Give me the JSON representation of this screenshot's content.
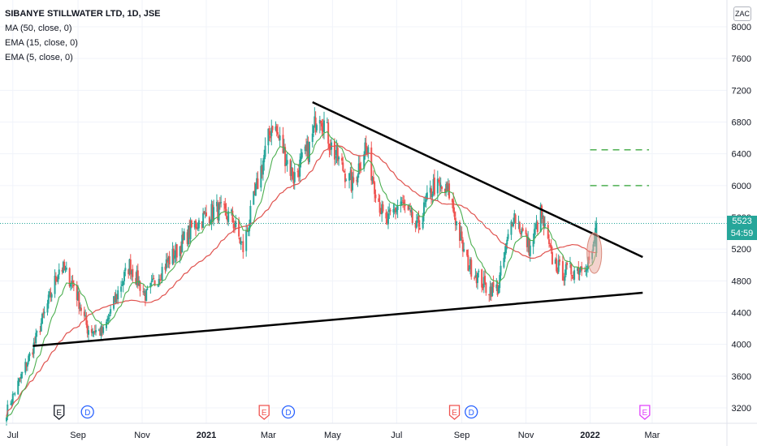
{
  "legend": {
    "title": "SIBANYE STILLWATER LTD, 1D, JSE",
    "ma": "MA (50, close, 0)",
    "ema15": "EMA (15, close, 0)",
    "ema5": "EMA (5, close, 0)"
  },
  "currency": "ZAC",
  "price_label": {
    "price": "5523",
    "timer": "54:59"
  },
  "colors": {
    "up": "#26a69a",
    "down": "#ef5350",
    "ma": "#e0534f",
    "ema15": "#4caf50",
    "trendline": "#000000",
    "target": "#4caf50",
    "ellipse": "#e7a89b",
    "price_box": "#26a69a"
  },
  "chart_data": {
    "type": "candlestick",
    "title": "SIBANYE STILLWATER LTD, 1D, JSE",
    "ylim": [
      3100,
      8100
    ],
    "y_ticks": [
      3200,
      3600,
      4000,
      4400,
      4800,
      5200,
      5600,
      6000,
      6400,
      6800,
      7200,
      7600,
      8000
    ],
    "x_labels": [
      "Jul",
      "Sep",
      "Nov",
      "2021",
      "Mar",
      "May",
      "Jul",
      "Sep",
      "Nov",
      "2022",
      "Mar"
    ],
    "last_price": 5523,
    "price_path": [
      [
        "2020-06-25",
        3150
      ],
      [
        "2020-07-20",
        3950
      ],
      [
        "2020-08-03",
        4500
      ],
      [
        "2020-08-15",
        5000
      ],
      [
        "2020-08-28",
        4750
      ],
      [
        "2020-09-10",
        4200
      ],
      [
        "2020-09-25",
        4150
      ],
      [
        "2020-10-10",
        4700
      ],
      [
        "2020-10-20",
        5000
      ],
      [
        "2020-11-05",
        4600
      ],
      [
        "2020-11-20",
        4950
      ],
      [
        "2020-12-05",
        5200
      ],
      [
        "2020-12-20",
        5500
      ],
      [
        "2021-01-10",
        5700
      ],
      [
        "2021-01-25",
        5600
      ],
      [
        "2021-02-05",
        5200
      ],
      [
        "2021-02-20",
        6100
      ],
      [
        "2021-03-05",
        6800
      ],
      [
        "2021-03-25",
        6100
      ],
      [
        "2021-04-10",
        6500
      ],
      [
        "2021-04-18",
        7000
      ],
      [
        "2021-05-01",
        6450
      ],
      [
        "2021-05-20",
        6000
      ],
      [
        "2021-06-01",
        6500
      ],
      [
        "2021-06-20",
        5500
      ],
      [
        "2021-07-05",
        5800
      ],
      [
        "2021-07-20",
        5450
      ],
      [
        "2021-08-05",
        6000
      ],
      [
        "2021-08-20",
        5900
      ],
      [
        "2021-09-05",
        5050
      ],
      [
        "2021-09-25",
        4700
      ],
      [
        "2021-10-05",
        4700
      ],
      [
        "2021-10-20",
        5650
      ],
      [
        "2021-11-05",
        5200
      ],
      [
        "2021-11-15",
        5650
      ],
      [
        "2021-11-25",
        5100
      ],
      [
        "2021-12-05",
        4900
      ],
      [
        "2021-12-20",
        4950
      ],
      [
        "2022-01-03",
        5100
      ],
      [
        "2022-01-07",
        5523
      ]
    ],
    "series": [
      {
        "name": "MA (50, close, 0)",
        "values": []
      },
      {
        "name": "EMA (15, close, 0)",
        "values": []
      },
      {
        "name": "EMA (5, close, 0)",
        "values": []
      }
    ],
    "trendlines": [
      {
        "from": [
          "2021-04-12",
          7050
        ],
        "to": [
          "2022-02-20",
          5100
        ]
      },
      {
        "from": [
          "2020-07-20",
          3980
        ],
        "to": [
          "2022-02-20",
          4650
        ]
      }
    ],
    "target_levels": [
      6450,
      6000
    ],
    "events": [
      {
        "type": "E",
        "date": "2020-08-14",
        "color": "#131722"
      },
      {
        "type": "D",
        "date": "2020-09-10",
        "color": "#2962ff"
      },
      {
        "type": "E",
        "date": "2021-02-25",
        "color": "#ef5350"
      },
      {
        "type": "D",
        "date": "2021-03-20",
        "color": "#2962ff"
      },
      {
        "type": "E",
        "date": "2021-08-25",
        "color": "#ef5350"
      },
      {
        "type": "D",
        "date": "2021-09-10",
        "color": "#2962ff"
      },
      {
        "type": "E",
        "date": "2022-02-22",
        "color": "#e040fb"
      }
    ]
  }
}
